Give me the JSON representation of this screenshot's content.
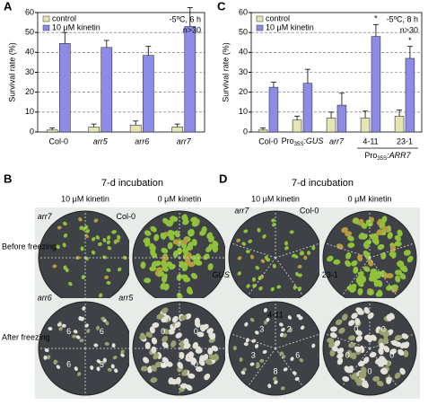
{
  "chart_data": [
    {
      "type": "bar",
      "panel": "A",
      "ylabel": "Survival rate (%)",
      "categories": [
        "Col-0",
        "arr5",
        "arr6",
        "arr7"
      ],
      "series": [
        {
          "name": "control",
          "color": "#e6e6b4",
          "values": [
            1,
            2.5,
            3.5,
            2.5
          ],
          "errors": [
            1,
            1.5,
            2,
            1.5
          ]
        },
        {
          "name": "10 μM kinetin",
          "color": "#8c8ce6",
          "values": [
            44.5,
            42.5,
            38.5,
            53
          ],
          "errors": [
            5.5,
            3.5,
            4.5,
            9.5
          ]
        }
      ],
      "ylim": [
        0,
        60
      ],
      "yticks": [
        0,
        10,
        20,
        30,
        40,
        50,
        60
      ],
      "grid": true,
      "annotations": [
        "-5ºC, 6 h",
        "n>30"
      ]
    },
    {
      "type": "bar",
      "panel": "C",
      "ylabel": "Survival rate (%)",
      "categories": [
        "Col-0",
        "Pro35S:GUS",
        "arr7",
        "4-11",
        "23-1"
      ],
      "group_label": "Pro35S:ARR7",
      "series": [
        {
          "name": "control",
          "color": "#e6e6b4",
          "values": [
            1,
            6,
            7,
            7,
            8
          ],
          "errors": [
            1,
            2,
            3,
            3.5,
            3
          ]
        },
        {
          "name": "10 μM kinetin",
          "color": "#8c8ce6",
          "values": [
            22.5,
            24.5,
            13.5,
            48,
            37
          ],
          "errors": [
            2.5,
            7,
            6,
            6,
            6
          ]
        }
      ],
      "significance": [
        null,
        null,
        null,
        "*",
        "*"
      ],
      "ylim": [
        0,
        60
      ],
      "yticks": [
        0,
        10,
        20,
        30,
        40,
        50,
        60
      ],
      "grid": true,
      "annotations": [
        "-5ºC, 8 h",
        "n>30"
      ]
    }
  ],
  "photos": [
    {
      "panel": "B",
      "title": "7-d incubation",
      "columns": [
        "10 μM kinetin",
        "0 μM kinetin"
      ],
      "rows": [
        "Before freezing",
        "After freezing"
      ],
      "genotypes": [
        "Col-0",
        "arr5",
        "arr6",
        "arr7"
      ],
      "counts_kinetin": [
        "6",
        "5",
        "6",
        "6"
      ],
      "counts_control": [
        "0",
        "0",
        "0",
        "0"
      ]
    },
    {
      "panel": "D",
      "title": "7-d incubation",
      "columns": [
        "10 μM kinetin",
        "0 μM kinetin"
      ],
      "genotypes": [
        "Col-0",
        "23-1",
        "4-11",
        "GUS",
        "arr7"
      ],
      "counts_kinetin": [
        "2",
        "6",
        "8",
        "3",
        "3"
      ],
      "counts_control": [
        "0",
        "0",
        "0",
        "0",
        "0"
      ]
    }
  ]
}
